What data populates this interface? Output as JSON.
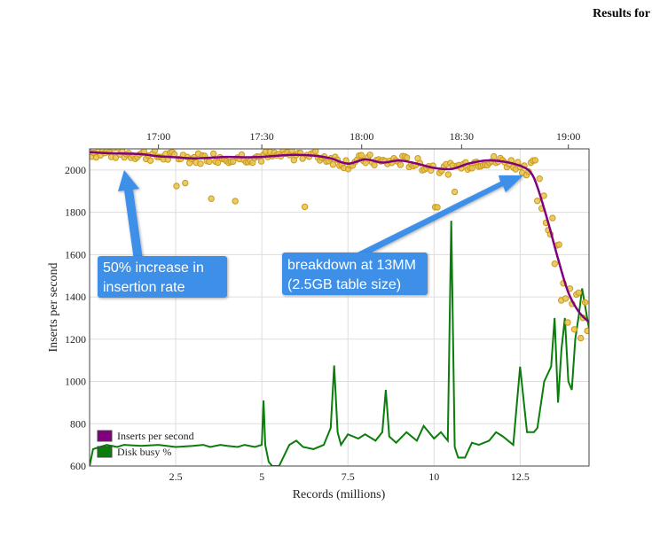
{
  "header": {
    "title": "Results for"
  },
  "chart_data": {
    "type": "line",
    "xlabel": "Records (millions)",
    "ylabel": "Inserts per second",
    "xlim": [
      0,
      14.5
    ],
    "ylim": [
      600,
      2100
    ],
    "x_ticks": [
      2.5,
      5,
      7.5,
      10,
      12.5
    ],
    "x_tick_labels": [
      "2.5",
      "5",
      "7.5",
      "10",
      "12.5"
    ],
    "y_ticks": [
      600,
      800,
      1000,
      1200,
      1400,
      1600,
      1800,
      2000
    ],
    "y_tick_labels": [
      "600",
      "800",
      "1000",
      "1200",
      "1400",
      "1600",
      "1800",
      "2000"
    ],
    "top_axis": {
      "tick_labels": [
        "17:00",
        "17:30",
        "18:00",
        "18:30",
        "19:00"
      ],
      "tick_x": [
        2.0,
        5.0,
        7.9,
        10.8,
        13.9
      ]
    },
    "grid": true,
    "legend": {
      "placement": "bottom-left",
      "entries": [
        "Inserts per second",
        "Disk busy %"
      ]
    },
    "colors": {
      "inserts_line": "#800080",
      "inserts_points": "#e8c24a",
      "disk_busy": "#0a7d0a",
      "annotation_bg": "#3d8fe8"
    },
    "series": [
      {
        "name": "Inserts per second",
        "style": "smoothed line with scatter points",
        "x": [
          0,
          0.5,
          1,
          1.5,
          2,
          2.5,
          3,
          3.5,
          4,
          4.5,
          5,
          5.5,
          6,
          6.5,
          7,
          7.5,
          8,
          8.5,
          9,
          9.5,
          10,
          10.5,
          11,
          11.5,
          12,
          12.5,
          12.8,
          13.0,
          13.3,
          13.6,
          13.9,
          14.2,
          14.5
        ],
        "values": [
          2085,
          2080,
          2078,
          2075,
          2065,
          2060,
          2055,
          2058,
          2062,
          2060,
          2062,
          2068,
          2072,
          2068,
          2055,
          2030,
          2050,
          2035,
          2045,
          2030,
          2010,
          2005,
          2030,
          2045,
          2040,
          2020,
          1990,
          1920,
          1760,
          1580,
          1420,
          1330,
          1280
        ]
      },
      {
        "name": "Disk busy %",
        "style": "line",
        "x": [
          0,
          0.1,
          0.3,
          0.5,
          0.8,
          1,
          1.5,
          2,
          2.5,
          3,
          3.3,
          3.5,
          3.8,
          4,
          4.3,
          4.5,
          4.8,
          5,
          5.05,
          5.1,
          5.2,
          5.3,
          5.5,
          5.8,
          6,
          6.2,
          6.5,
          6.8,
          7,
          7.1,
          7.2,
          7.3,
          7.5,
          7.8,
          8,
          8.3,
          8.5,
          8.6,
          8.7,
          8.9,
          9.2,
          9.5,
          9.7,
          10,
          10.2,
          10.4,
          10.5,
          10.6,
          10.7,
          10.9,
          11.1,
          11.3,
          11.6,
          11.8,
          12,
          12.3,
          12.5,
          12.7,
          12.9,
          13.0,
          13.2,
          13.4,
          13.5,
          13.6,
          13.7,
          13.8,
          13.9,
          14.0,
          14.1,
          14.2,
          14.3,
          14.5
        ],
        "values": [
          600,
          680,
          690,
          700,
          690,
          700,
          695,
          700,
          690,
          695,
          700,
          690,
          700,
          695,
          690,
          700,
          690,
          700,
          910,
          700,
          620,
          600,
          600,
          700,
          720,
          690,
          680,
          700,
          780,
          1075,
          760,
          700,
          750,
          730,
          750,
          720,
          760,
          960,
          740,
          710,
          760,
          720,
          790,
          730,
          760,
          720,
          1760,
          690,
          640,
          640,
          710,
          700,
          720,
          760,
          740,
          700,
          1070,
          760,
          760,
          780,
          1000,
          1070,
          1300,
          900,
          1150,
          1300,
          1000,
          960,
          1200,
          1310,
          1440,
          1250
        ]
      }
    ],
    "annotations": [
      {
        "text": "50% increase in insertion rate",
        "lines": [
          "50% increase in",
          "insertion rate"
        ]
      },
      {
        "text": "breakdown at 13MM (2.5GB table size)",
        "lines": [
          "breakdown at 13MM",
          "(2.5GB table size)"
        ]
      }
    ]
  }
}
